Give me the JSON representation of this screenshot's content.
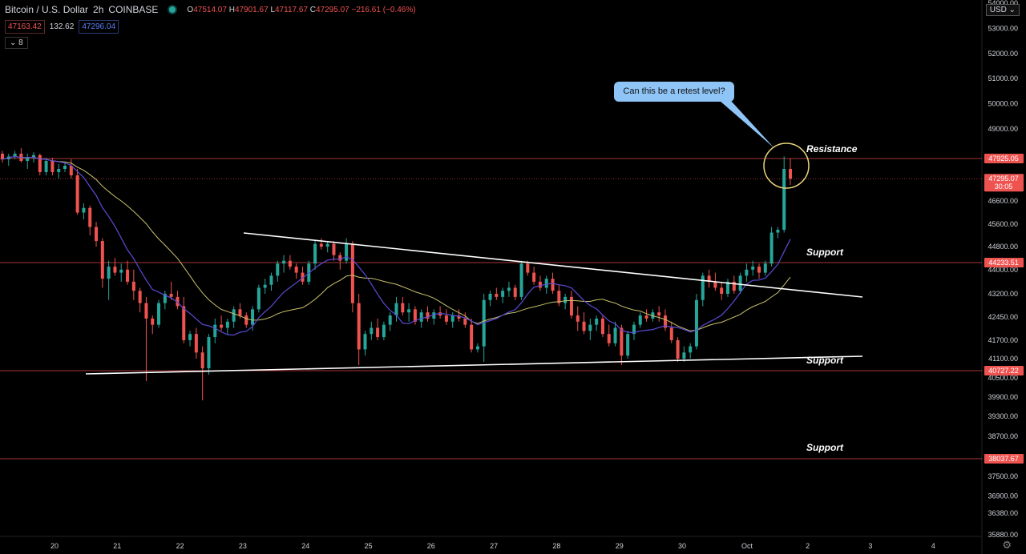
{
  "header": {
    "symbol": "Bitcoin / U.S. Dollar",
    "interval": "2h",
    "exchange": "COINBASE",
    "open": "47514.07",
    "high": "47901.67",
    "low": "47117.67",
    "close": "47295.07",
    "change": "−216.61 (−0.46%)",
    "bid": "47163.42",
    "spread": "132.62",
    "ask": "47296.04",
    "indicators_count": "8"
  },
  "currency": "USD",
  "price_axis": {
    "ticks": [
      "54000.00",
      "53000.00",
      "52000.00",
      "51000.00",
      "50000.00",
      "49000.00",
      "48000.00",
      "46600.00",
      "45600.00",
      "44800.00",
      "44000.00",
      "43200.00",
      "42450.00",
      "41700.00",
      "41100.00",
      "40500.00",
      "39900.00",
      "39300.00",
      "38700.00",
      "37500.00",
      "36900.00",
      "36380.00",
      "35880.00"
    ],
    "labels": [
      {
        "text": "47925.05",
        "color": "#ef5350"
      },
      {
        "text": "47295.07",
        "color": "#ef5350",
        "sub": "30:05"
      },
      {
        "text": "44233.51",
        "color": "#ef5350"
      },
      {
        "text": "40727.22",
        "color": "#ef5350"
      },
      {
        "text": "38037.67",
        "color": "#ef5350"
      }
    ]
  },
  "time_axis": [
    "20",
    "21",
    "22",
    "23",
    "24",
    "25",
    "26",
    "27",
    "28",
    "29",
    "30",
    "Oct",
    "2",
    "3",
    "4"
  ],
  "annotations": {
    "callout": "Can this be a retest level?",
    "resistance": "Resistance",
    "support": "Support"
  },
  "colors": {
    "up": "#26a69a",
    "down": "#ef5350",
    "level": "#ef5350",
    "ma_blue": "#5b4bd6",
    "ma_yellow": "#c9c26b",
    "trendline": "#ffffff",
    "circle": "#e7d37a"
  },
  "chart_data": {
    "type": "candlestick",
    "title": "Bitcoin / U.S. Dollar · 2h · COINBASE",
    "ylim": [
      35800,
      54100
    ],
    "x": [
      "20",
      "21",
      "22",
      "23",
      "24",
      "25",
      "26",
      "27",
      "28",
      "29",
      "30",
      "Oct",
      "2",
      "3",
      "4"
    ],
    "levels": [
      47925.05,
      44233.51,
      40727.22,
      38037.67
    ],
    "current_price": 47295.07,
    "candles": [
      [
        48100,
        48200,
        47800,
        47900
      ],
      [
        47900,
        48100,
        47700,
        48000
      ],
      [
        48000,
        48200,
        47900,
        48100
      ],
      [
        48100,
        48300,
        47800,
        47850
      ],
      [
        47850,
        48100,
        47600,
        47950
      ],
      [
        47950,
        48150,
        47800,
        48050
      ],
      [
        48050,
        48100,
        47400,
        47500
      ],
      [
        47500,
        47950,
        47400,
        47850
      ],
      [
        47850,
        47950,
        47400,
        47500
      ],
      [
        47500,
        47750,
        47300,
        47600
      ],
      [
        47600,
        47800,
        47500,
        47700
      ],
      [
        47700,
        47900,
        47300,
        47400
      ],
      [
        47400,
        47600,
        46000,
        46100
      ],
      [
        46100,
        46500,
        45800,
        46300
      ],
      [
        46300,
        46400,
        45200,
        45500
      ],
      [
        45500,
        45700,
        44800,
        45000
      ],
      [
        45000,
        45100,
        43400,
        43700
      ],
      [
        43700,
        44300,
        43000,
        44100
      ],
      [
        44100,
        44400,
        43800,
        43900
      ],
      [
        43900,
        44200,
        43600,
        44000
      ],
      [
        44000,
        44300,
        43500,
        43600
      ],
      [
        43600,
        44000,
        43000,
        43300
      ],
      [
        43300,
        43400,
        42600,
        42900
      ],
      [
        42900,
        43100,
        40400,
        42400
      ],
      [
        42400,
        42500,
        41900,
        42200
      ],
      [
        42200,
        43000,
        42100,
        42900
      ],
      [
        42900,
        43300,
        42700,
        43200
      ],
      [
        43200,
        43600,
        43000,
        43100
      ],
      [
        43100,
        43300,
        42700,
        42800
      ],
      [
        42800,
        43100,
        41600,
        41700
      ],
      [
        41700,
        42000,
        41500,
        41900
      ],
      [
        41900,
        42100,
        41100,
        41300
      ],
      [
        41300,
        41500,
        39800,
        40800
      ],
      [
        40800,
        41900,
        40600,
        41800
      ],
      [
        41800,
        42400,
        41600,
        42200
      ],
      [
        42200,
        42500,
        42000,
        42100
      ],
      [
        42100,
        42400,
        41900,
        42300
      ],
      [
        42300,
        42800,
        42100,
        42700
      ],
      [
        42700,
        42900,
        42400,
        42500
      ],
      [
        42500,
        42600,
        42100,
        42200
      ],
      [
        42200,
        42800,
        42000,
        42700
      ],
      [
        42700,
        43500,
        42600,
        43400
      ],
      [
        43400,
        43700,
        43200,
        43500
      ],
      [
        43500,
        43900,
        43300,
        43800
      ],
      [
        43800,
        44300,
        43600,
        44200
      ],
      [
        44200,
        44500,
        43900,
        44300
      ],
      [
        44300,
        44500,
        44000,
        44100
      ],
      [
        44100,
        44200,
        43700,
        43900
      ],
      [
        43900,
        44100,
        43500,
        43600
      ],
      [
        43600,
        44300,
        43500,
        44200
      ],
      [
        44200,
        45000,
        44000,
        44900
      ],
      [
        44900,
        45100,
        44700,
        44800
      ],
      [
        44800,
        45000,
        44600,
        44900
      ],
      [
        44900,
        45000,
        44300,
        44500
      ],
      [
        44500,
        44600,
        44000,
        44300
      ],
      [
        44300,
        45100,
        44200,
        44900
      ],
      [
        44900,
        45000,
        42600,
        42900
      ],
      [
        42900,
        43200,
        40900,
        41400
      ],
      [
        41400,
        42000,
        41200,
        41900
      ],
      [
        41900,
        42300,
        41700,
        42100
      ],
      [
        42100,
        42400,
        41700,
        41800
      ],
      [
        41800,
        42300,
        41700,
        42200
      ],
      [
        42200,
        42600,
        42000,
        42500
      ],
      [
        42500,
        43100,
        42300,
        42900
      ],
      [
        42900,
        43100,
        42500,
        42600
      ],
      [
        42600,
        42900,
        42300,
        42700
      ],
      [
        42700,
        42800,
        42200,
        42300
      ],
      [
        42300,
        42700,
        42100,
        42600
      ],
      [
        42600,
        42800,
        42300,
        42400
      ],
      [
        42400,
        42700,
        42200,
        42600
      ],
      [
        42600,
        42800,
        42400,
        42500
      ],
      [
        42500,
        42700,
        42200,
        42300
      ],
      [
        42300,
        42600,
        42100,
        42500
      ],
      [
        42500,
        42700,
        42300,
        42400
      ],
      [
        42400,
        42600,
        42100,
        42200
      ],
      [
        42200,
        42400,
        41300,
        41400
      ],
      [
        41400,
        41600,
        41300,
        41500
      ],
      [
        41500,
        43200,
        41000,
        43000
      ],
      [
        43000,
        43300,
        42800,
        43200
      ],
      [
        43200,
        43400,
        43000,
        43100
      ],
      [
        43100,
        43400,
        42900,
        43300
      ],
      [
        43300,
        43600,
        43100,
        43400
      ],
      [
        43400,
        43500,
        43000,
        43100
      ],
      [
        43100,
        44300,
        43000,
        44200
      ],
      [
        44200,
        44300,
        43800,
        43900
      ],
      [
        43900,
        44100,
        43500,
        43600
      ],
      [
        43600,
        43800,
        43300,
        43400
      ],
      [
        43400,
        43800,
        43200,
        43700
      ],
      [
        43700,
        43900,
        43200,
        43300
      ],
      [
        43300,
        43500,
        42800,
        42900
      ],
      [
        42900,
        43200,
        42700,
        43100
      ],
      [
        43100,
        43300,
        42400,
        42500
      ],
      [
        42500,
        42800,
        42000,
        42300
      ],
      [
        42300,
        42600,
        41900,
        42000
      ],
      [
        42000,
        42400,
        41700,
        42200
      ],
      [
        42200,
        42500,
        42000,
        42400
      ],
      [
        42400,
        42500,
        41800,
        41900
      ],
      [
        41900,
        42200,
        41500,
        41600
      ],
      [
        41600,
        42300,
        41500,
        42100
      ],
      [
        42100,
        42200,
        40900,
        41200
      ],
      [
        41200,
        42000,
        41100,
        41900
      ],
      [
        41900,
        42300,
        41700,
        42200
      ],
      [
        42200,
        42600,
        42100,
        42500
      ],
      [
        42500,
        42700,
        42300,
        42400
      ],
      [
        42400,
        42700,
        42300,
        42600
      ],
      [
        42600,
        42800,
        42300,
        42500
      ],
      [
        42500,
        42700,
        42000,
        42100
      ],
      [
        42100,
        42300,
        41600,
        41700
      ],
      [
        41700,
        41800,
        41000,
        41100
      ],
      [
        41100,
        41500,
        41000,
        41300
      ],
      [
        41300,
        41600,
        41100,
        41500
      ],
      [
        41500,
        43200,
        41400,
        43000
      ],
      [
        43000,
        43900,
        42800,
        43800
      ],
      [
        43800,
        44000,
        43400,
        43600
      ],
      [
        43600,
        43900,
        43300,
        43400
      ],
      [
        43400,
        43600,
        43000,
        43200
      ],
      [
        43200,
        43700,
        43100,
        43600
      ],
      [
        43600,
        43800,
        43200,
        43300
      ],
      [
        43300,
        43900,
        43200,
        43800
      ],
      [
        43800,
        44200,
        43600,
        44000
      ],
      [
        44000,
        44300,
        43800,
        44100
      ],
      [
        44100,
        44200,
        43700,
        43900
      ],
      [
        43900,
        44300,
        43800,
        44200
      ],
      [
        44200,
        45500,
        44100,
        45300
      ],
      [
        45300,
        45500,
        45100,
        45400
      ],
      [
        45400,
        48000,
        45300,
        47600
      ],
      [
        47600,
        47925,
        47100,
        47300
      ]
    ]
  }
}
